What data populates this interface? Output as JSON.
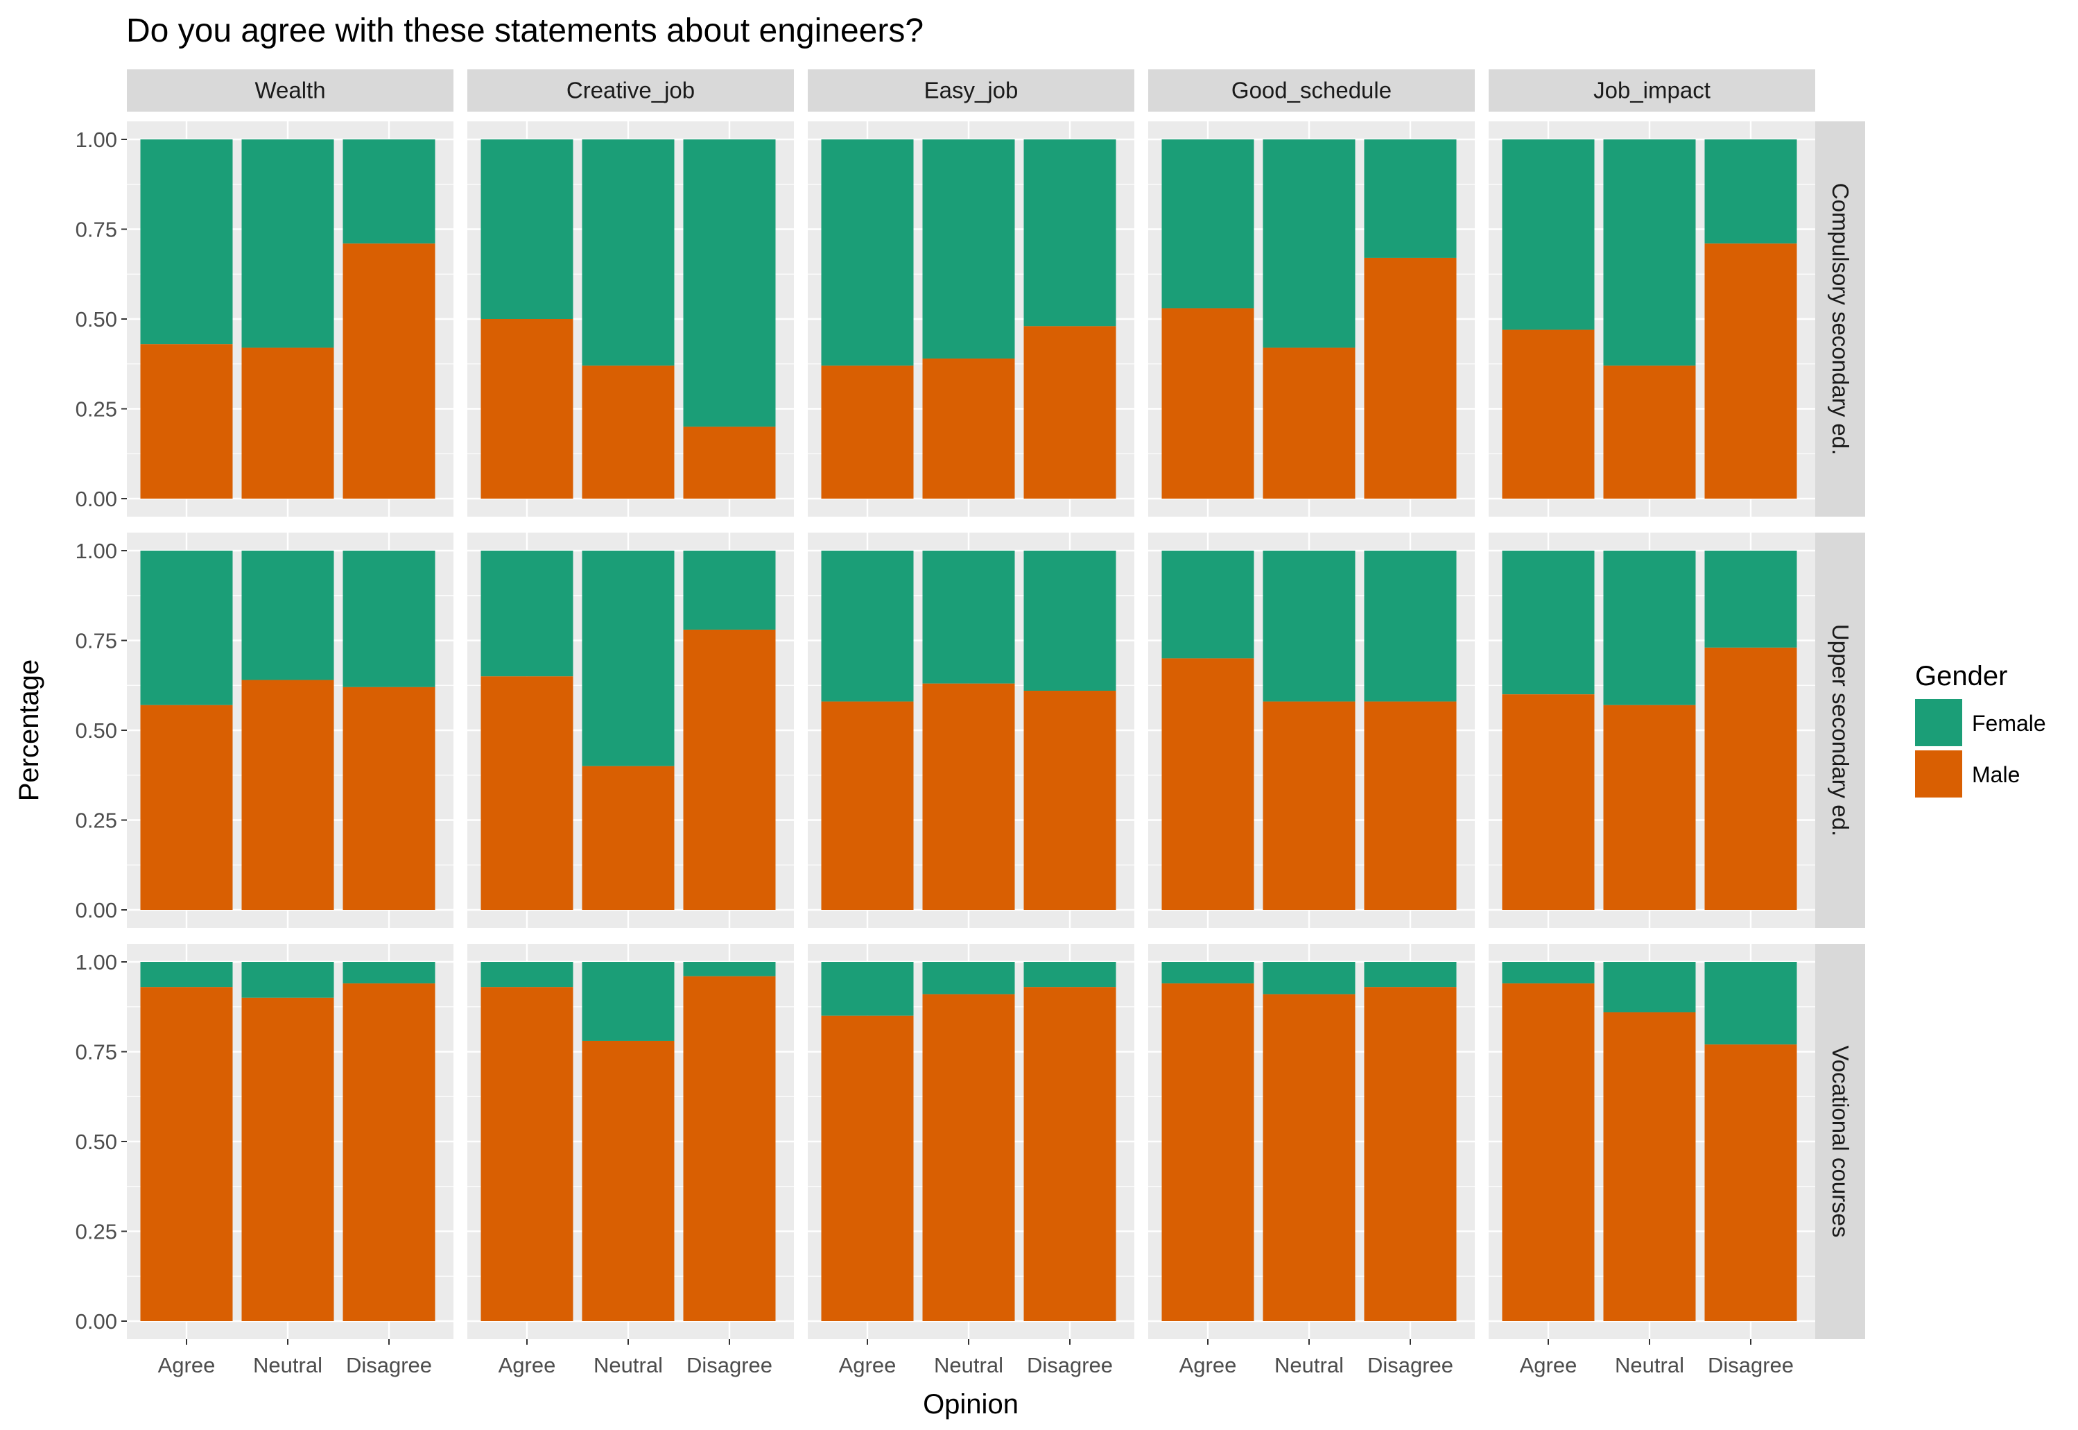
{
  "chart_data": {
    "type": "bar",
    "stacked": true,
    "title": "Do you agree with these statements about engineers?",
    "xlabel": "Opinion",
    "ylabel": "Percentage",
    "ylim": [
      0,
      1
    ],
    "yticks": [
      "0.00",
      "0.25",
      "0.50",
      "0.75",
      "1.00"
    ],
    "ytick_values": [
      0,
      0.25,
      0.5,
      0.75,
      1
    ],
    "categories": [
      "Agree",
      "Neutral",
      "Disagree"
    ],
    "facet_cols": [
      "Wealth",
      "Creative_job",
      "Easy_job",
      "Good_schedule",
      "Job_impact"
    ],
    "facet_rows": [
      "Compulsory secondary ed.",
      "Upper secondary ed.",
      "Vocational courses"
    ],
    "legend": {
      "title": "Gender",
      "position": "right",
      "entries": [
        {
          "name": "Female",
          "color": "#1b9e77"
        },
        {
          "name": "Male",
          "color": "#d95f02"
        }
      ]
    },
    "grid": true,
    "panel_background": "#ebebeb",
    "male_share": [
      [
        [
          0.43,
          0.42,
          0.71
        ],
        [
          0.5,
          0.37,
          0.2
        ],
        [
          0.37,
          0.39,
          0.48
        ],
        [
          0.53,
          0.42,
          0.67
        ],
        [
          0.47,
          0.37,
          0.71
        ]
      ],
      [
        [
          0.57,
          0.64,
          0.62
        ],
        [
          0.65,
          0.4,
          0.78
        ],
        [
          0.58,
          0.63,
          0.61
        ],
        [
          0.7,
          0.58,
          0.58
        ],
        [
          0.6,
          0.57,
          0.73
        ]
      ],
      [
        [
          0.93,
          0.9,
          0.94
        ],
        [
          0.93,
          0.78,
          0.96
        ],
        [
          0.85,
          0.91,
          0.93
        ],
        [
          0.94,
          0.91,
          0.93
        ],
        [
          0.94,
          0.86,
          0.77
        ]
      ]
    ],
    "female_share": [
      [
        [
          0.57,
          0.58,
          0.29
        ],
        [
          0.5,
          0.63,
          0.8
        ],
        [
          0.63,
          0.61,
          0.52
        ],
        [
          0.47,
          0.58,
          0.33
        ],
        [
          0.53,
          0.63,
          0.29
        ]
      ],
      [
        [
          0.43,
          0.36,
          0.38
        ],
        [
          0.35,
          0.6,
          0.22
        ],
        [
          0.42,
          0.37,
          0.39
        ],
        [
          0.3,
          0.42,
          0.42
        ],
        [
          0.4,
          0.43,
          0.27
        ]
      ],
      [
        [
          0.07,
          0.1,
          0.06
        ],
        [
          0.07,
          0.22,
          0.04
        ],
        [
          0.15,
          0.09,
          0.07
        ],
        [
          0.06,
          0.09,
          0.07
        ],
        [
          0.06,
          0.14,
          0.23
        ]
      ]
    ]
  }
}
